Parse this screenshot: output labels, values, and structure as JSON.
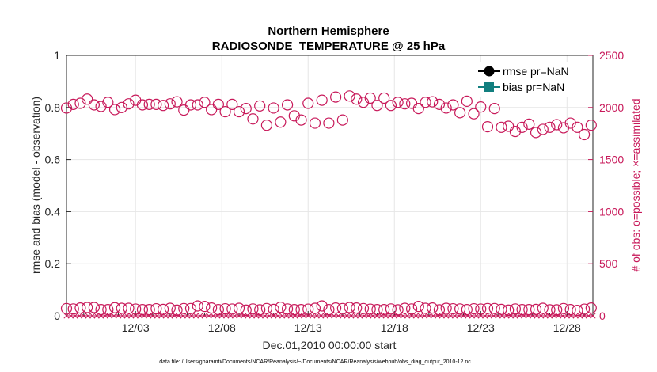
{
  "chart_data": {
    "type": "scatter",
    "title_line1": "Northern Hemisphere",
    "title_line2": "RADIOSONDE_TEMPERATURE @ 25 hPa",
    "xlabel": "Dec.01,2010 00:00:00 start",
    "ylabel_left": "rmse and bias (model - observation)",
    "ylabel_right": "# of obs: o=possible; ×=assimilated",
    "ylim_left": [
      0,
      1
    ],
    "ylim_right": [
      0,
      2500
    ],
    "xlim": [
      0,
      61
    ],
    "left_ticks": [
      "0",
      "0.2",
      "0.4",
      "0.6",
      "0.8",
      "1"
    ],
    "right_ticks": [
      "0",
      "500",
      "1000",
      "1500",
      "2000",
      "2500"
    ],
    "x_ticks": [
      {
        "pos": 8,
        "label": "12/03"
      },
      {
        "pos": 18,
        "label": "12/08"
      },
      {
        "pos": 28,
        "label": "12/13"
      },
      {
        "pos": 38,
        "label": "12/18"
      },
      {
        "pos": 48,
        "label": "12/23"
      },
      {
        "pos": 58,
        "label": "12/28"
      }
    ],
    "grid": true,
    "legend": [
      {
        "label": "rmse pr=NaN",
        "color": "#000000",
        "marker": "circle"
      },
      {
        "label": "bias pr=NaN",
        "color": "#127f7f",
        "marker": "square"
      }
    ],
    "legend_position": "top-right",
    "series_obs_color": "#c8195a",
    "possible_0000Z": [
      1995,
      2040,
      2025,
      2050,
      2000,
      2070,
      2030,
      2020,
      2055,
      2025,
      2050,
      2030,
      2030,
      1990,
      2015,
      1995,
      2025,
      1880,
      1850,
      1850,
      1880,
      2080,
      2090,
      2090,
      2050,
      2040,
      2050,
      2030,
      2025,
      2060,
      2005,
      1990,
      1820,
      1810,
      1760,
      1810,
      1805,
      1810,
      1830
    ],
    "possible_1200Z": [
      2030,
      2080,
      2010,
      1980,
      2035,
      2025,
      2030,
      2035,
      1975,
      2025,
      1980,
      1960,
      1960,
      1890,
      1830,
      1860,
      1920,
      2040,
      2070,
      2100,
      2110,
      2050,
      2020,
      2020,
      2035,
      1990,
      2055,
      1995,
      1950,
      1940,
      1815,
      1810,
      1770,
      1840,
      1790,
      1835,
      1850,
      1740
    ],
    "possible_low_0000Z": [
      70,
      75,
      80,
      60,
      72,
      65,
      60,
      62,
      55,
      70,
      90,
      60,
      65,
      55,
      58,
      62,
      66,
      60,
      72,
      60,
      70,
      75,
      64,
      60,
      58,
      66,
      72,
      58,
      68,
      60,
      65,
      70,
      55,
      60,
      62,
      58,
      70,
      52,
      75
    ],
    "possible_low_1200Z": [
      66,
      80,
      60,
      78,
      72,
      60,
      68,
      72,
      70,
      95,
      75,
      68,
      72,
      66,
      70,
      82,
      60,
      64,
      95,
      75,
      80,
      70,
      60,
      66,
      72,
      90,
      75,
      72,
      66,
      68,
      70,
      62,
      66,
      60,
      72,
      58,
      60,
      64
    ],
    "assimilated_count": 0
  },
  "footnote": "data file: /Users/gharamti/Documents/NCAR/Reanalysis/~/Documents/NCAR/Reanalysis/webpub/obs_diag_output_2010-12.nc"
}
